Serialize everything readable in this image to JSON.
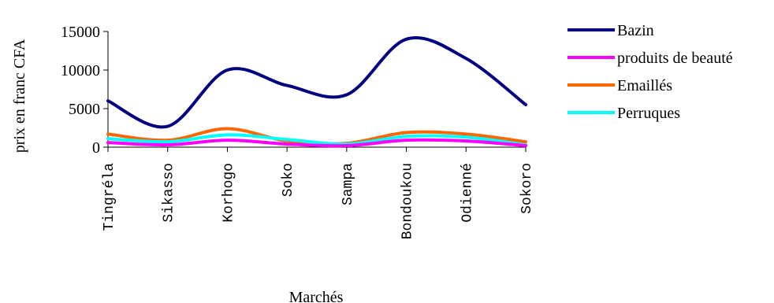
{
  "chart_data": {
    "type": "line",
    "title": "",
    "xlabel": "Marchés",
    "ylabel": "prix en franc CFA",
    "categories": [
      "Tingréla",
      "Sikasso",
      "Korhogo",
      "Soko",
      "Sampa",
      "Bondoukou",
      "Odienné",
      "Sokoro"
    ],
    "ylim": [
      0,
      15000
    ],
    "yticks": [
      "0",
      "5000",
      "10000",
      "15000"
    ],
    "grid": false,
    "smooth": true,
    "legend_position": "right",
    "series": [
      {
        "name": "Bazin",
        "color": "#000080",
        "values": [
          6000,
          2700,
          10000,
          8000,
          6800,
          14000,
          11500,
          5500
        ]
      },
      {
        "name": "produits de beauté",
        "color": "#ff00ff",
        "values": [
          600,
          300,
          900,
          400,
          200,
          900,
          800,
          200
        ]
      },
      {
        "name": "Emaillés",
        "color": "#ff6600",
        "values": [
          1700,
          900,
          2400,
          800,
          500,
          1900,
          1700,
          700
        ]
      },
      {
        "name": "Perruques",
        "color": "#00ffff",
        "values": [
          1100,
          700,
          1600,
          1000,
          400,
          1400,
          1300,
          300
        ]
      }
    ]
  }
}
